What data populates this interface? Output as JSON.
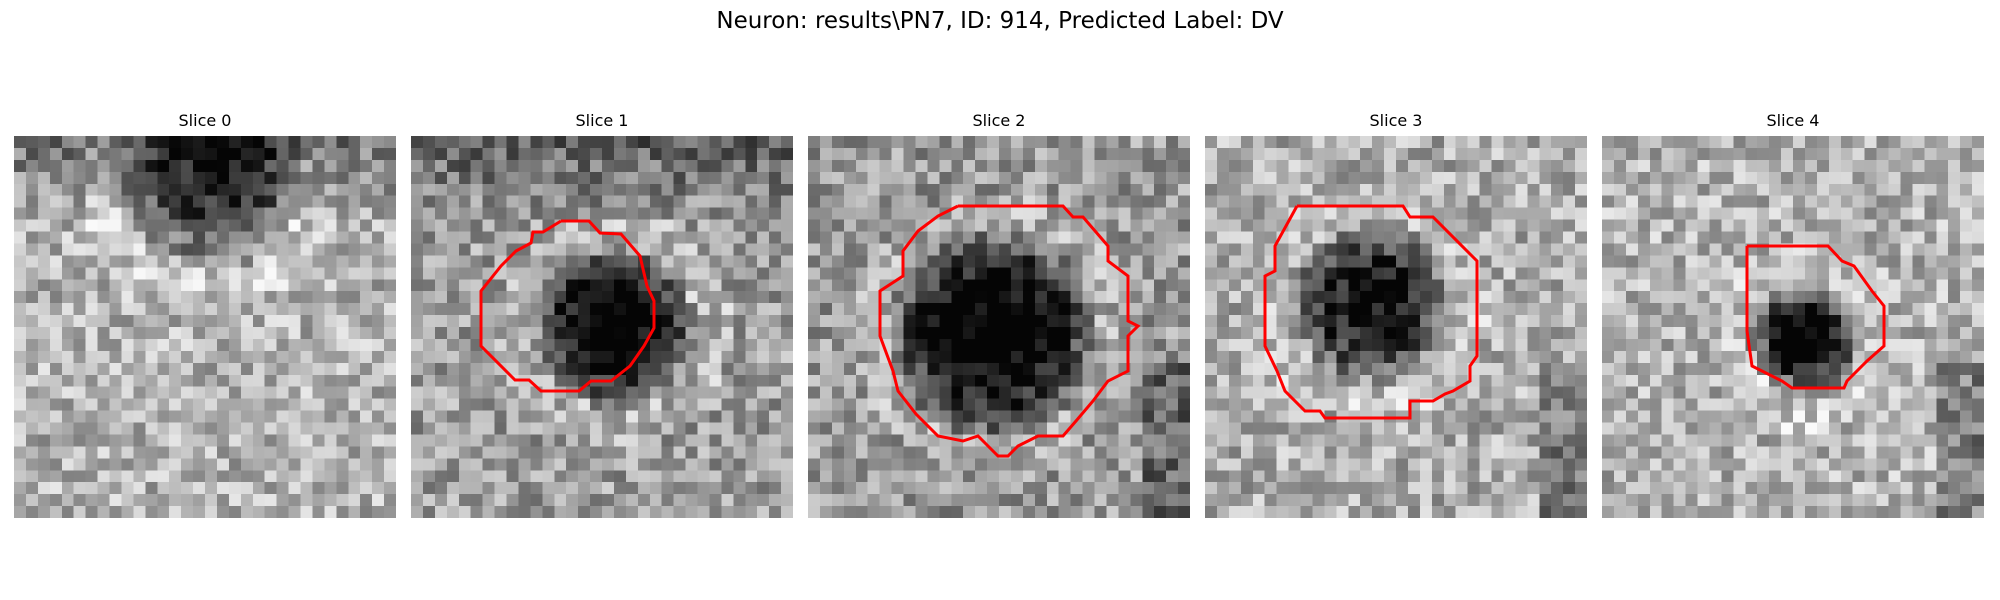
{
  "figure": {
    "title": "Neuron: results\\PN7, ID: 914, Predicted Label: DV"
  },
  "panels": [
    {
      "title": "Slice 0",
      "has_contour": false
    },
    {
      "title": "Slice 1",
      "has_contour": true
    },
    {
      "title": "Slice 2",
      "has_contour": true
    },
    {
      "title": "Slice 3",
      "has_contour": true
    },
    {
      "title": "Slice 4",
      "has_contour": true
    }
  ],
  "colors": {
    "contour": "#ff0000",
    "background": "#ffffff"
  },
  "image": {
    "colormap": "gray",
    "axes": "off"
  }
}
